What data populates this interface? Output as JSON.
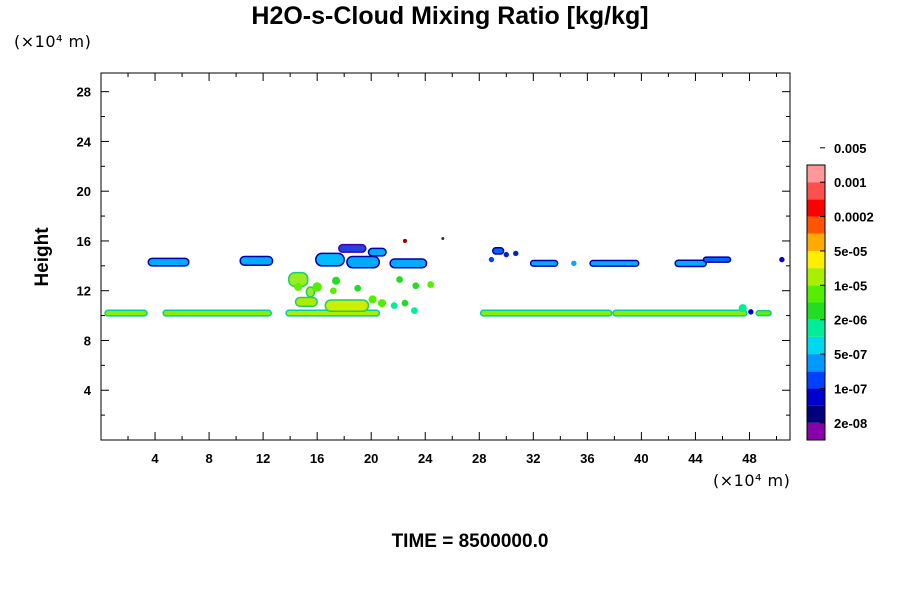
{
  "chart_data": {
    "type": "heatmap",
    "title": "H2O-s-Cloud Mixing Ratio [kg/kg]",
    "ylabel": "Height",
    "xlabel": "",
    "x_unit": "(×10⁴ m)",
    "y_unit": "(×10⁴ m)",
    "xlim": [
      0,
      51
    ],
    "ylim": [
      0,
      29.5
    ],
    "xticks": [
      4,
      8,
      12,
      16,
      20,
      24,
      28,
      32,
      36,
      40,
      44,
      48
    ],
    "yticks": [
      4,
      8,
      12,
      16,
      20,
      24,
      28
    ],
    "colorbar": {
      "colors": [
        "#8800aa",
        "#00007a",
        "#0000cc",
        "#0040ff",
        "#0099ff",
        "#00d8f0",
        "#00ee99",
        "#22dd22",
        "#55ee00",
        "#aaee00",
        "#ffee00",
        "#ffaa00",
        "#ff5500",
        "#ff0000",
        "#ff5050",
        "#ff9999"
      ],
      "labels": [
        "2e-08",
        "1e-07",
        "5e-07",
        "2e-06",
        "1e-05",
        "5e-05",
        "0.0002",
        "0.001",
        "0.005"
      ]
    },
    "cloud_features": [
      {
        "x0": 0.3,
        "x1": 3.4,
        "y": 10.2,
        "h": 0.45,
        "color": "#88ee00",
        "edge": "#00ccaa"
      },
      {
        "x0": 4.6,
        "x1": 12.6,
        "y": 10.2,
        "h": 0.45,
        "color": "#88ee00",
        "edge": "#00ccaa"
      },
      {
        "x0": 13.7,
        "x1": 20.6,
        "y": 10.2,
        "h": 0.45,
        "color": "#aaee00",
        "edge": "#00ccaa"
      },
      {
        "x0": 28.1,
        "x1": 37.8,
        "y": 10.2,
        "h": 0.45,
        "color": "#88ee00",
        "edge": "#00ccaa"
      },
      {
        "x0": 37.9,
        "x1": 47.8,
        "y": 10.2,
        "h": 0.45,
        "color": "#88ee00",
        "edge": "#00ccaa"
      },
      {
        "x0": 48.5,
        "x1": 49.6,
        "y": 10.2,
        "h": 0.4,
        "color": "#66ee00",
        "edge": "#00ccaa"
      },
      {
        "x0": 14.4,
        "x1": 16.0,
        "y": 11.1,
        "h": 0.7,
        "color": "#aaee00",
        "edge": "#22cc66"
      },
      {
        "x0": 16.6,
        "x1": 19.8,
        "y": 10.8,
        "h": 0.9,
        "color": "#ccee00",
        "edge": "#22cc66"
      },
      {
        "x0": 15.2,
        "x1": 15.8,
        "y": 11.9,
        "h": 0.8,
        "color": "#99ee22",
        "edge": "#22cc66"
      },
      {
        "x0": 13.9,
        "x1": 15.3,
        "y": 12.9,
        "h": 1.1,
        "color": "#99ee22",
        "edge": "#22cc66"
      },
      {
        "x0": 3.5,
        "x1": 6.5,
        "y": 14.3,
        "h": 0.6,
        "color": "#00aaff",
        "edge": "#0000aa"
      },
      {
        "x0": 10.3,
        "x1": 12.7,
        "y": 14.4,
        "h": 0.7,
        "color": "#00aaff",
        "edge": "#0000aa"
      },
      {
        "x0": 15.9,
        "x1": 18.0,
        "y": 14.5,
        "h": 1.0,
        "color": "#00bbff",
        "edge": "#0000aa"
      },
      {
        "x0": 17.6,
        "x1": 19.6,
        "y": 15.4,
        "h": 0.6,
        "color": "#2244dd",
        "edge": "#4400aa"
      },
      {
        "x0": 18.2,
        "x1": 20.6,
        "y": 14.3,
        "h": 0.9,
        "color": "#00aaff",
        "edge": "#0000aa"
      },
      {
        "x0": 19.8,
        "x1": 21.1,
        "y": 15.1,
        "h": 0.6,
        "color": "#00aaff",
        "edge": "#0000aa"
      },
      {
        "x0": 21.4,
        "x1": 24.1,
        "y": 14.2,
        "h": 0.7,
        "color": "#00aaff",
        "edge": "#0000aa"
      },
      {
        "x0": 29.0,
        "x1": 29.8,
        "y": 15.2,
        "h": 0.5,
        "color": "#0066ff",
        "edge": "#000099"
      },
      {
        "x0": 31.8,
        "x1": 33.8,
        "y": 14.2,
        "h": 0.45,
        "color": "#00aaff",
        "edge": "#0000aa"
      },
      {
        "x0": 36.2,
        "x1": 39.8,
        "y": 14.2,
        "h": 0.45,
        "color": "#00aaff",
        "edge": "#0000aa"
      },
      {
        "x0": 42.5,
        "x1": 44.8,
        "y": 14.2,
        "h": 0.5,
        "color": "#00aaff",
        "edge": "#0000aa"
      },
      {
        "x0": 44.6,
        "x1": 46.6,
        "y": 14.5,
        "h": 0.4,
        "color": "#0066ff",
        "edge": "#0000aa"
      }
    ],
    "cloud_specks": [
      {
        "x": 17.4,
        "y": 12.8,
        "r": 0.3,
        "color": "#22dd22"
      },
      {
        "x": 17.2,
        "y": 12.0,
        "r": 0.25,
        "color": "#55ee00"
      },
      {
        "x": 14.6,
        "y": 12.3,
        "r": 0.3,
        "color": "#66ee00"
      },
      {
        "x": 16.0,
        "y": 12.3,
        "r": 0.35,
        "color": "#55ee00"
      },
      {
        "x": 19.0,
        "y": 12.2,
        "r": 0.25,
        "color": "#22dd22"
      },
      {
        "x": 20.1,
        "y": 11.3,
        "r": 0.3,
        "color": "#55ee00"
      },
      {
        "x": 20.8,
        "y": 11.0,
        "r": 0.3,
        "color": "#55ee00"
      },
      {
        "x": 21.7,
        "y": 10.8,
        "r": 0.25,
        "color": "#00ee99"
      },
      {
        "x": 22.5,
        "y": 11.0,
        "r": 0.25,
        "color": "#22dd22"
      },
      {
        "x": 23.2,
        "y": 10.4,
        "r": 0.25,
        "color": "#00ee99"
      },
      {
        "x": 23.3,
        "y": 12.4,
        "r": 0.25,
        "color": "#22dd22"
      },
      {
        "x": 24.4,
        "y": 12.5,
        "r": 0.25,
        "color": "#55ee00"
      },
      {
        "x": 22.1,
        "y": 12.9,
        "r": 0.25,
        "color": "#22dd22"
      },
      {
        "x": 22.5,
        "y": 16.0,
        "r": 0.15,
        "color": "#990000"
      },
      {
        "x": 25.3,
        "y": 16.2,
        "r": 0.1,
        "color": "#333333"
      },
      {
        "x": 28.9,
        "y": 14.5,
        "r": 0.2,
        "color": "#0044ff"
      },
      {
        "x": 30.0,
        "y": 14.9,
        "r": 0.2,
        "color": "#0022cc"
      },
      {
        "x": 30.7,
        "y": 15.0,
        "r": 0.2,
        "color": "#0022cc"
      },
      {
        "x": 35.0,
        "y": 14.2,
        "r": 0.2,
        "color": "#00aaff"
      },
      {
        "x": 47.5,
        "y": 10.6,
        "r": 0.3,
        "color": "#00ee99"
      },
      {
        "x": 48.1,
        "y": 10.3,
        "r": 0.2,
        "color": "#0000cc"
      },
      {
        "x": 50.4,
        "y": 14.5,
        "r": 0.2,
        "color": "#0000cc"
      },
      {
        "x": 25.8,
        "y": 13.0,
        "r": 0.1,
        "color": "#ffffff"
      }
    ]
  },
  "footer": {
    "time_label": "TIME = 8500000.0"
  }
}
